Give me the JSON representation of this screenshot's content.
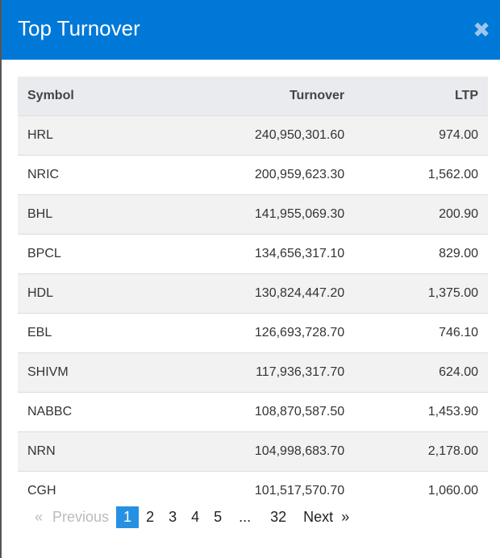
{
  "modal": {
    "title": "Top Turnover",
    "close_icon": "close-icon",
    "header_color": "#0078d7"
  },
  "table": {
    "headers": [
      "Symbol",
      "Turnover",
      "LTP"
    ],
    "rows": [
      [
        "HRL",
        "240,950,301.60",
        "974.00"
      ],
      [
        "NRIC",
        "200,959,623.30",
        "1,562.00"
      ],
      [
        "BHL",
        "141,955,069.30",
        "200.90"
      ],
      [
        "BPCL",
        "134,656,317.10",
        "829.00"
      ],
      [
        "HDL",
        "130,824,447.20",
        "1,375.00"
      ],
      [
        "EBL",
        "126,693,728.70",
        "746.10"
      ],
      [
        "SHIVM",
        "117,936,317.70",
        "624.00"
      ],
      [
        "NABBC",
        "108,870,587.50",
        "1,453.90"
      ],
      [
        "NRN",
        "104,998,683.70",
        "2,178.00"
      ],
      [
        "CGH",
        "101,517,570.70",
        "1,060.00"
      ]
    ]
  },
  "pagination": {
    "prev_arrow": "«",
    "previous": "Previous",
    "pages": [
      "1",
      "2",
      "3",
      "4",
      "5",
      "...",
      "32"
    ],
    "active": "1",
    "next": "Next",
    "next_arrow": "»"
  }
}
